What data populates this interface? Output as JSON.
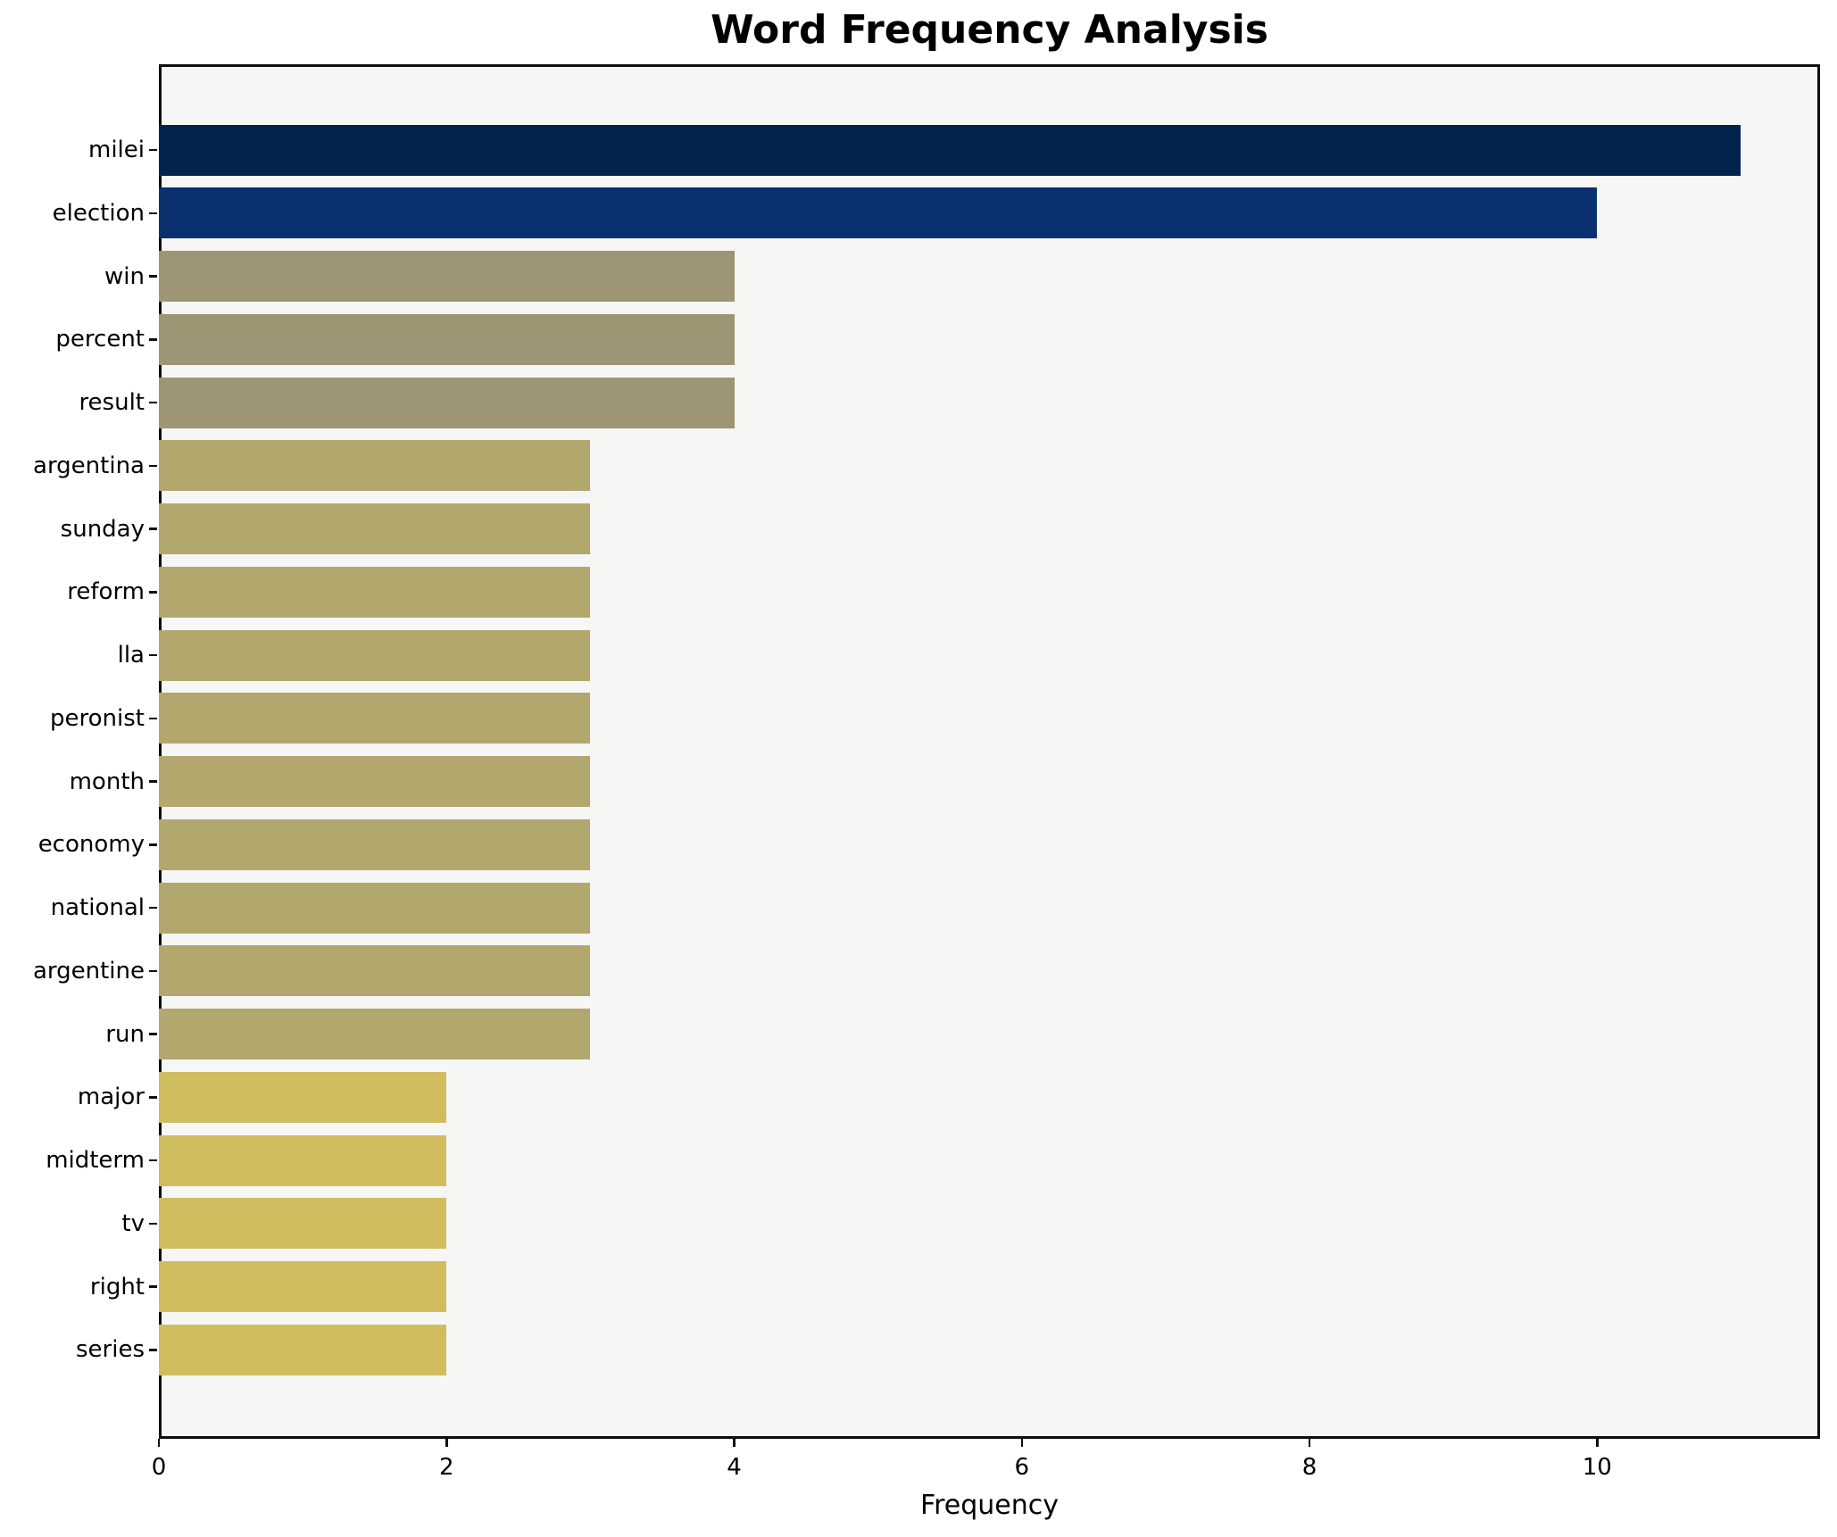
{
  "chart_data": {
    "type": "bar",
    "orientation": "horizontal",
    "title": "Word Frequency Analysis",
    "xlabel": "Frequency",
    "ylabel": "",
    "categories": [
      "milei",
      "election",
      "win",
      "percent",
      "result",
      "argentina",
      "sunday",
      "reform",
      "lla",
      "peronist",
      "month",
      "economy",
      "national",
      "argentine",
      "run",
      "major",
      "midterm",
      "tv",
      "right",
      "series"
    ],
    "values": [
      11,
      10,
      4,
      4,
      4,
      3,
      3,
      3,
      3,
      3,
      3,
      3,
      3,
      3,
      3,
      2,
      2,
      2,
      2,
      2
    ],
    "bar_colors": [
      "#02234c",
      "#09316f",
      "#9d9574",
      "#9d9574",
      "#9d9574",
      "#b2a86e",
      "#b2a86e",
      "#b2a86e",
      "#b2a86e",
      "#b2a86e",
      "#b2a86e",
      "#b2a86e",
      "#b2a86e",
      "#b2a86e",
      "#b2a86e",
      "#d0bd60",
      "#d0bd60",
      "#d0bd60",
      "#d0bd60",
      "#d0bd60"
    ],
    "xlim": [
      0,
      11.55
    ],
    "xticks": [
      0,
      2,
      4,
      6,
      8,
      10
    ],
    "grid": false,
    "legend": null,
    "colors": {
      "plot_background": "#f6f6f5",
      "figure_background": "#ffffff",
      "spine": "#0e0e0e",
      "text": "#000000"
    }
  }
}
